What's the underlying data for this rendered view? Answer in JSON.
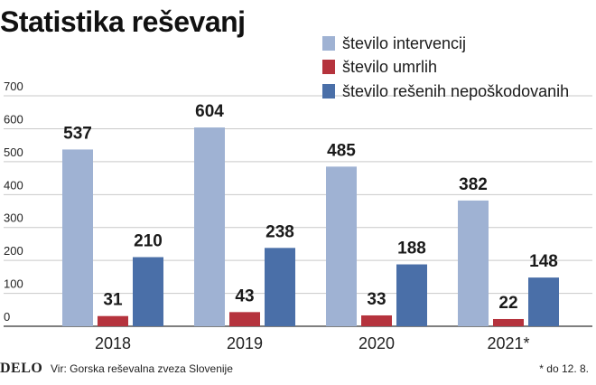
{
  "chart_data": {
    "type": "bar",
    "title": "Statistika reševanj",
    "categories": [
      "2018",
      "2019",
      "2020",
      "2021*"
    ],
    "series": [
      {
        "name": "število intervencij",
        "color": "#9fb2d3",
        "values": [
          537,
          604,
          485,
          382
        ]
      },
      {
        "name": "število umrlih",
        "color": "#b5333d",
        "values": [
          31,
          43,
          33,
          22
        ]
      },
      {
        "name": "število rešenih nepoškodovanih",
        "color": "#4a6fa8",
        "values": [
          210,
          238,
          188,
          148
        ]
      }
    ],
    "yticks": [
      "0",
      "100",
      "200",
      "300",
      "400",
      "500",
      "600",
      "700"
    ],
    "ylim": [
      0,
      700
    ],
    "grid": true,
    "legend_position": "top-right"
  },
  "footer": {
    "logo": "DELO",
    "source": "Vir: Gorska reševalna zveza Slovenije",
    "note": "* do 12. 8."
  }
}
